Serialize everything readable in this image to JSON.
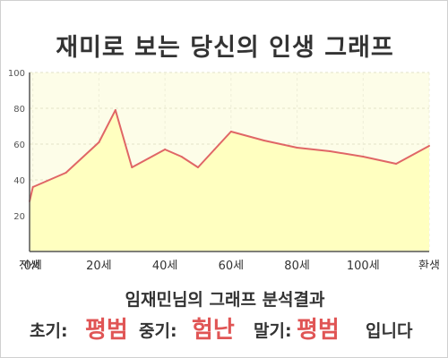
{
  "title": "재미로 보는 당신의 인생 그래프",
  "colors": {
    "line": "#e06666",
    "fill": "#ffffc0",
    "plot_bg": "#fdfde8",
    "accent": "#e05555"
  },
  "chart_data": {
    "type": "area",
    "title": "재미로 보는 당신의 인생 그래프",
    "x": [
      -1,
      0,
      10,
      20,
      25,
      30,
      35,
      40,
      45,
      50,
      55,
      60,
      70,
      80,
      90,
      100,
      110,
      120
    ],
    "values": [
      28,
      36,
      44,
      61,
      79,
      47,
      52,
      57,
      53,
      47,
      57,
      67,
      62,
      58,
      56,
      53,
      49,
      59
    ],
    "xlim": [
      -1,
      120
    ],
    "ylim": [
      0,
      100
    ],
    "yticks": [
      20,
      40,
      60,
      80,
      100
    ],
    "xticks": [
      {
        "x": -1,
        "label": "전생"
      },
      {
        "x": 0,
        "label": "0세"
      },
      {
        "x": 20,
        "label": "20세"
      },
      {
        "x": 40,
        "label": "40세"
      },
      {
        "x": 60,
        "label": "60세"
      },
      {
        "x": 80,
        "label": "80세"
      },
      {
        "x": 100,
        "label": "100세"
      },
      {
        "x": 120,
        "label": "환생"
      }
    ],
    "grid": true
  },
  "result": {
    "title": "임재민님의 그래프 분석결과",
    "early_label": "초기:",
    "early_value": "평범",
    "middle_label": "중기:",
    "middle_value": "험난",
    "late_label": "말기:",
    "late_value": "평범",
    "ending": "입니다"
  }
}
